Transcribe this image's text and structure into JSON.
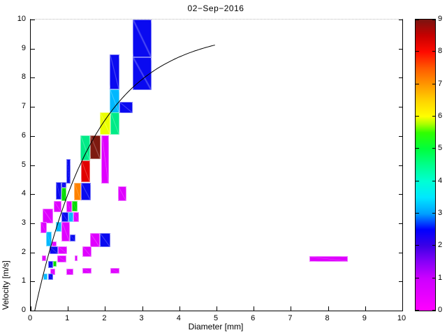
{
  "title": "02−Sep−2016",
  "axes": {
    "xlabel": "Diameter [mm]",
    "ylabel": "Velocity [m/s]",
    "xlim": [
      0,
      10
    ],
    "ylim": [
      0,
      10
    ],
    "xticks": [
      0,
      1,
      2,
      3,
      4,
      5,
      6,
      7,
      8,
      9,
      10
    ],
    "yticks": [
      0,
      1,
      2,
      3,
      4,
      5,
      6,
      7,
      8,
      9,
      10
    ]
  },
  "palette": {
    "magenta": "#DF00FF",
    "blue": "#0A0AF0",
    "cyan": "#00B8FF",
    "spring": "#00EB87",
    "green": "#00DC00",
    "yellow": "#EBFF00",
    "orange": "#FF8200",
    "red": "#E10000",
    "maroon": "#7D1A10"
  },
  "colorbar": {
    "min": 0,
    "max": 9,
    "ticks": [
      0,
      1,
      2,
      3,
      4,
      5,
      6,
      7,
      8,
      9
    ],
    "gradient_stops": [
      [
        "0%",
        "#FF00FF"
      ],
      [
        "11.1%",
        "#CC00FF"
      ],
      [
        "16.7%",
        "#8800F8"
      ],
      [
        "22.2%",
        "#3C00E6"
      ],
      [
        "27.8%",
        "#0000FF"
      ],
      [
        "33.3%",
        "#00A0FF"
      ],
      [
        "38.9%",
        "#00E8FF"
      ],
      [
        "44.4%",
        "#00FFD4"
      ],
      [
        "50%",
        "#00FF8C"
      ],
      [
        "55.6%",
        "#00FF3C"
      ],
      [
        "61.1%",
        "#30FF00"
      ],
      [
        "64%",
        "#A8FF00"
      ],
      [
        "66.7%",
        "#FFFF00"
      ],
      [
        "72.2%",
        "#FFD200"
      ],
      [
        "77.8%",
        "#FF9600"
      ],
      [
        "83.3%",
        "#FF5A00"
      ],
      [
        "88.9%",
        "#FF0A00"
      ],
      [
        "94.4%",
        "#C80000"
      ],
      [
        "100%",
        "#7A1410"
      ]
    ]
  },
  "chart_data": {
    "type": "heatmap",
    "title": "02−Sep−2016",
    "xlabel": "Diameter [mm]",
    "ylabel": "Velocity [m/s]",
    "xlim": [
      0,
      10
    ],
    "ylim": [
      0,
      10
    ],
    "colorbar_range": [
      0,
      9
    ],
    "grid": false,
    "cells": [
      {
        "d0": 2.75,
        "d1": 3.25,
        "v0": 8.7,
        "v1": 10.0,
        "color": "blue",
        "value": 2
      },
      {
        "d0": 2.75,
        "d1": 3.25,
        "v0": 7.57,
        "v1": 8.7,
        "color": "blue",
        "value": 2
      },
      {
        "d0": 2.12,
        "d1": 2.39,
        "v0": 7.61,
        "v1": 8.81,
        "color": "blue",
        "value": 2
      },
      {
        "d0": 2.12,
        "d1": 2.39,
        "v0": 6.78,
        "v1": 7.61,
        "color": "cyan",
        "value": 3
      },
      {
        "d0": 2.39,
        "d1": 2.74,
        "v0": 6.78,
        "v1": 7.18,
        "color": "blue",
        "value": 2
      },
      {
        "d0": 1.86,
        "d1": 2.14,
        "v0": 6.04,
        "v1": 6.81,
        "color": "yellow",
        "value": 6
      },
      {
        "d0": 2.14,
        "d1": 2.39,
        "v0": 6.04,
        "v1": 6.81,
        "color": "spring",
        "value": 4.5
      },
      {
        "d0": 1.33,
        "d1": 1.6,
        "v0": 5.15,
        "v1": 6.02,
        "color": "spring",
        "value": 4.5
      },
      {
        "d0": 1.6,
        "d1": 1.89,
        "v0": 5.2,
        "v1": 6.02,
        "color": "maroon",
        "value": 9
      },
      {
        "d0": 1.89,
        "d1": 2.11,
        "v0": 4.37,
        "v1": 6.02,
        "color": "magenta",
        "value": 0.5
      },
      {
        "d0": 1.35,
        "d1": 1.6,
        "v0": 4.41,
        "v1": 5.15,
        "color": "red",
        "value": 8
      },
      {
        "d0": 0.95,
        "d1": 1.08,
        "v0": 4.37,
        "v1": 5.21,
        "color": "blue",
        "value": 2
      },
      {
        "d0": 0.68,
        "d1": 0.83,
        "v0": 3.81,
        "v1": 4.41,
        "color": "blue",
        "value": 2
      },
      {
        "d0": 0.83,
        "d1": 0.96,
        "v0": 4.21,
        "v1": 4.41,
        "color": "blue",
        "value": 2
      },
      {
        "d0": 0.83,
        "d1": 0.96,
        "v0": 3.76,
        "v1": 4.21,
        "color": "green",
        "value": 5
      },
      {
        "d0": 1.17,
        "d1": 1.35,
        "v0": 3.79,
        "v1": 4.4,
        "color": "orange",
        "value": 7
      },
      {
        "d0": 1.35,
        "d1": 1.62,
        "v0": 3.79,
        "v1": 4.4,
        "color": "blue",
        "value": 2
      },
      {
        "d0": 2.35,
        "d1": 2.58,
        "v0": 3.76,
        "v1": 4.27,
        "color": "magenta",
        "value": 0.5
      },
      {
        "d0": 0.62,
        "d1": 0.83,
        "v0": 3.38,
        "v1": 3.76,
        "color": "magenta",
        "value": 0.5
      },
      {
        "d0": 0.96,
        "d1": 1.11,
        "v0": 3.38,
        "v1": 3.76,
        "color": "magenta",
        "value": 0.5
      },
      {
        "d0": 1.11,
        "d1": 1.26,
        "v0": 3.41,
        "v1": 3.76,
        "color": "green",
        "value": 5
      },
      {
        "d0": 0.32,
        "d1": 0.6,
        "v0": 3.0,
        "v1": 3.5,
        "color": "magenta",
        "value": 0.5
      },
      {
        "d0": 0.83,
        "d1": 1.01,
        "v0": 3.04,
        "v1": 3.38,
        "color": "blue",
        "value": 2
      },
      {
        "d0": 1.01,
        "d1": 1.15,
        "v0": 3.04,
        "v1": 3.38,
        "color": "cyan",
        "value": 3
      },
      {
        "d0": 1.15,
        "d1": 1.29,
        "v0": 3.04,
        "v1": 3.38,
        "color": "magenta",
        "value": 0.5
      },
      {
        "d0": 0.26,
        "d1": 0.43,
        "v0": 2.66,
        "v1": 3.04,
        "color": "magenta",
        "value": 0.5
      },
      {
        "d0": 0.68,
        "d1": 0.83,
        "v0": 2.71,
        "v1": 3.04,
        "color": "cyan",
        "value": 3
      },
      {
        "d0": 0.83,
        "d1": 1.05,
        "v0": 2.37,
        "v1": 3.04,
        "color": "magenta",
        "value": 0.5
      },
      {
        "d0": 1.05,
        "d1": 1.2,
        "v0": 2.37,
        "v1": 2.61,
        "color": "blue",
        "value": 2
      },
      {
        "d0": 0.42,
        "d1": 0.56,
        "v0": 2.21,
        "v1": 2.71,
        "color": "cyan",
        "value": 3
      },
      {
        "d0": 0.56,
        "d1": 0.7,
        "v0": 2.21,
        "v1": 2.37,
        "color": "magenta",
        "value": 0.5
      },
      {
        "d0": 0.51,
        "d1": 0.73,
        "v0": 1.93,
        "v1": 2.21,
        "color": "blue",
        "value": 2
      },
      {
        "d0": 0.73,
        "d1": 0.98,
        "v0": 1.93,
        "v1": 2.21,
        "color": "magenta",
        "value": 0.5
      },
      {
        "d0": 1.6,
        "d1": 1.86,
        "v0": 2.18,
        "v1": 2.66,
        "color": "magenta",
        "value": 0.5
      },
      {
        "d0": 1.86,
        "d1": 2.14,
        "v0": 2.18,
        "v1": 2.66,
        "color": "blue",
        "value": 2
      },
      {
        "d0": 1.39,
        "d1": 1.64,
        "v0": 1.85,
        "v1": 2.21,
        "color": "magenta",
        "value": 0.5
      },
      {
        "d0": 0.3,
        "d1": 0.41,
        "v0": 1.69,
        "v1": 1.89,
        "color": "magenta",
        "value": 0.5
      },
      {
        "d0": 0.71,
        "d1": 0.96,
        "v0": 1.66,
        "v1": 1.9,
        "color": "magenta",
        "value": 0.5
      },
      {
        "d0": 1.18,
        "d1": 1.26,
        "v0": 1.71,
        "v1": 1.89,
        "color": "magenta",
        "value": 0.5
      },
      {
        "d0": 7.49,
        "d1": 8.53,
        "v0": 1.69,
        "v1": 1.87,
        "color": "magenta",
        "value": 0.5
      },
      {
        "d0": 0.46,
        "d1": 0.6,
        "v0": 1.45,
        "v1": 1.71,
        "color": "blue",
        "value": 2
      },
      {
        "d0": 0.6,
        "d1": 0.7,
        "v0": 1.51,
        "v1": 1.71,
        "color": "green",
        "value": 5
      },
      {
        "d0": 0.53,
        "d1": 0.66,
        "v0": 1.23,
        "v1": 1.45,
        "color": "magenta",
        "value": 0.5
      },
      {
        "d0": 0.96,
        "d1": 1.15,
        "v0": 1.23,
        "v1": 1.45,
        "color": "magenta",
        "value": 0.5
      },
      {
        "d0": 1.39,
        "d1": 1.64,
        "v0": 1.27,
        "v1": 1.46,
        "color": "magenta",
        "value": 0.5
      },
      {
        "d0": 2.14,
        "d1": 2.39,
        "v0": 1.28,
        "v1": 1.46,
        "color": "magenta",
        "value": 0.5
      },
      {
        "d0": 0.34,
        "d1": 0.46,
        "v0": 1.05,
        "v1": 1.27,
        "color": "cyan",
        "value": 3
      },
      {
        "d0": 0.46,
        "d1": 0.6,
        "v0": 1.05,
        "v1": 1.27,
        "color": "blue",
        "value": 2
      }
    ],
    "curve": {
      "name": "terminal-velocity-curve",
      "formula": "v = 9.65 - 10.3*exp(-0.6*D)",
      "v_inf": 9.65,
      "a": 10.3,
      "b": 0.6,
      "d_min": 0.105,
      "d_max": 5.0
    }
  }
}
